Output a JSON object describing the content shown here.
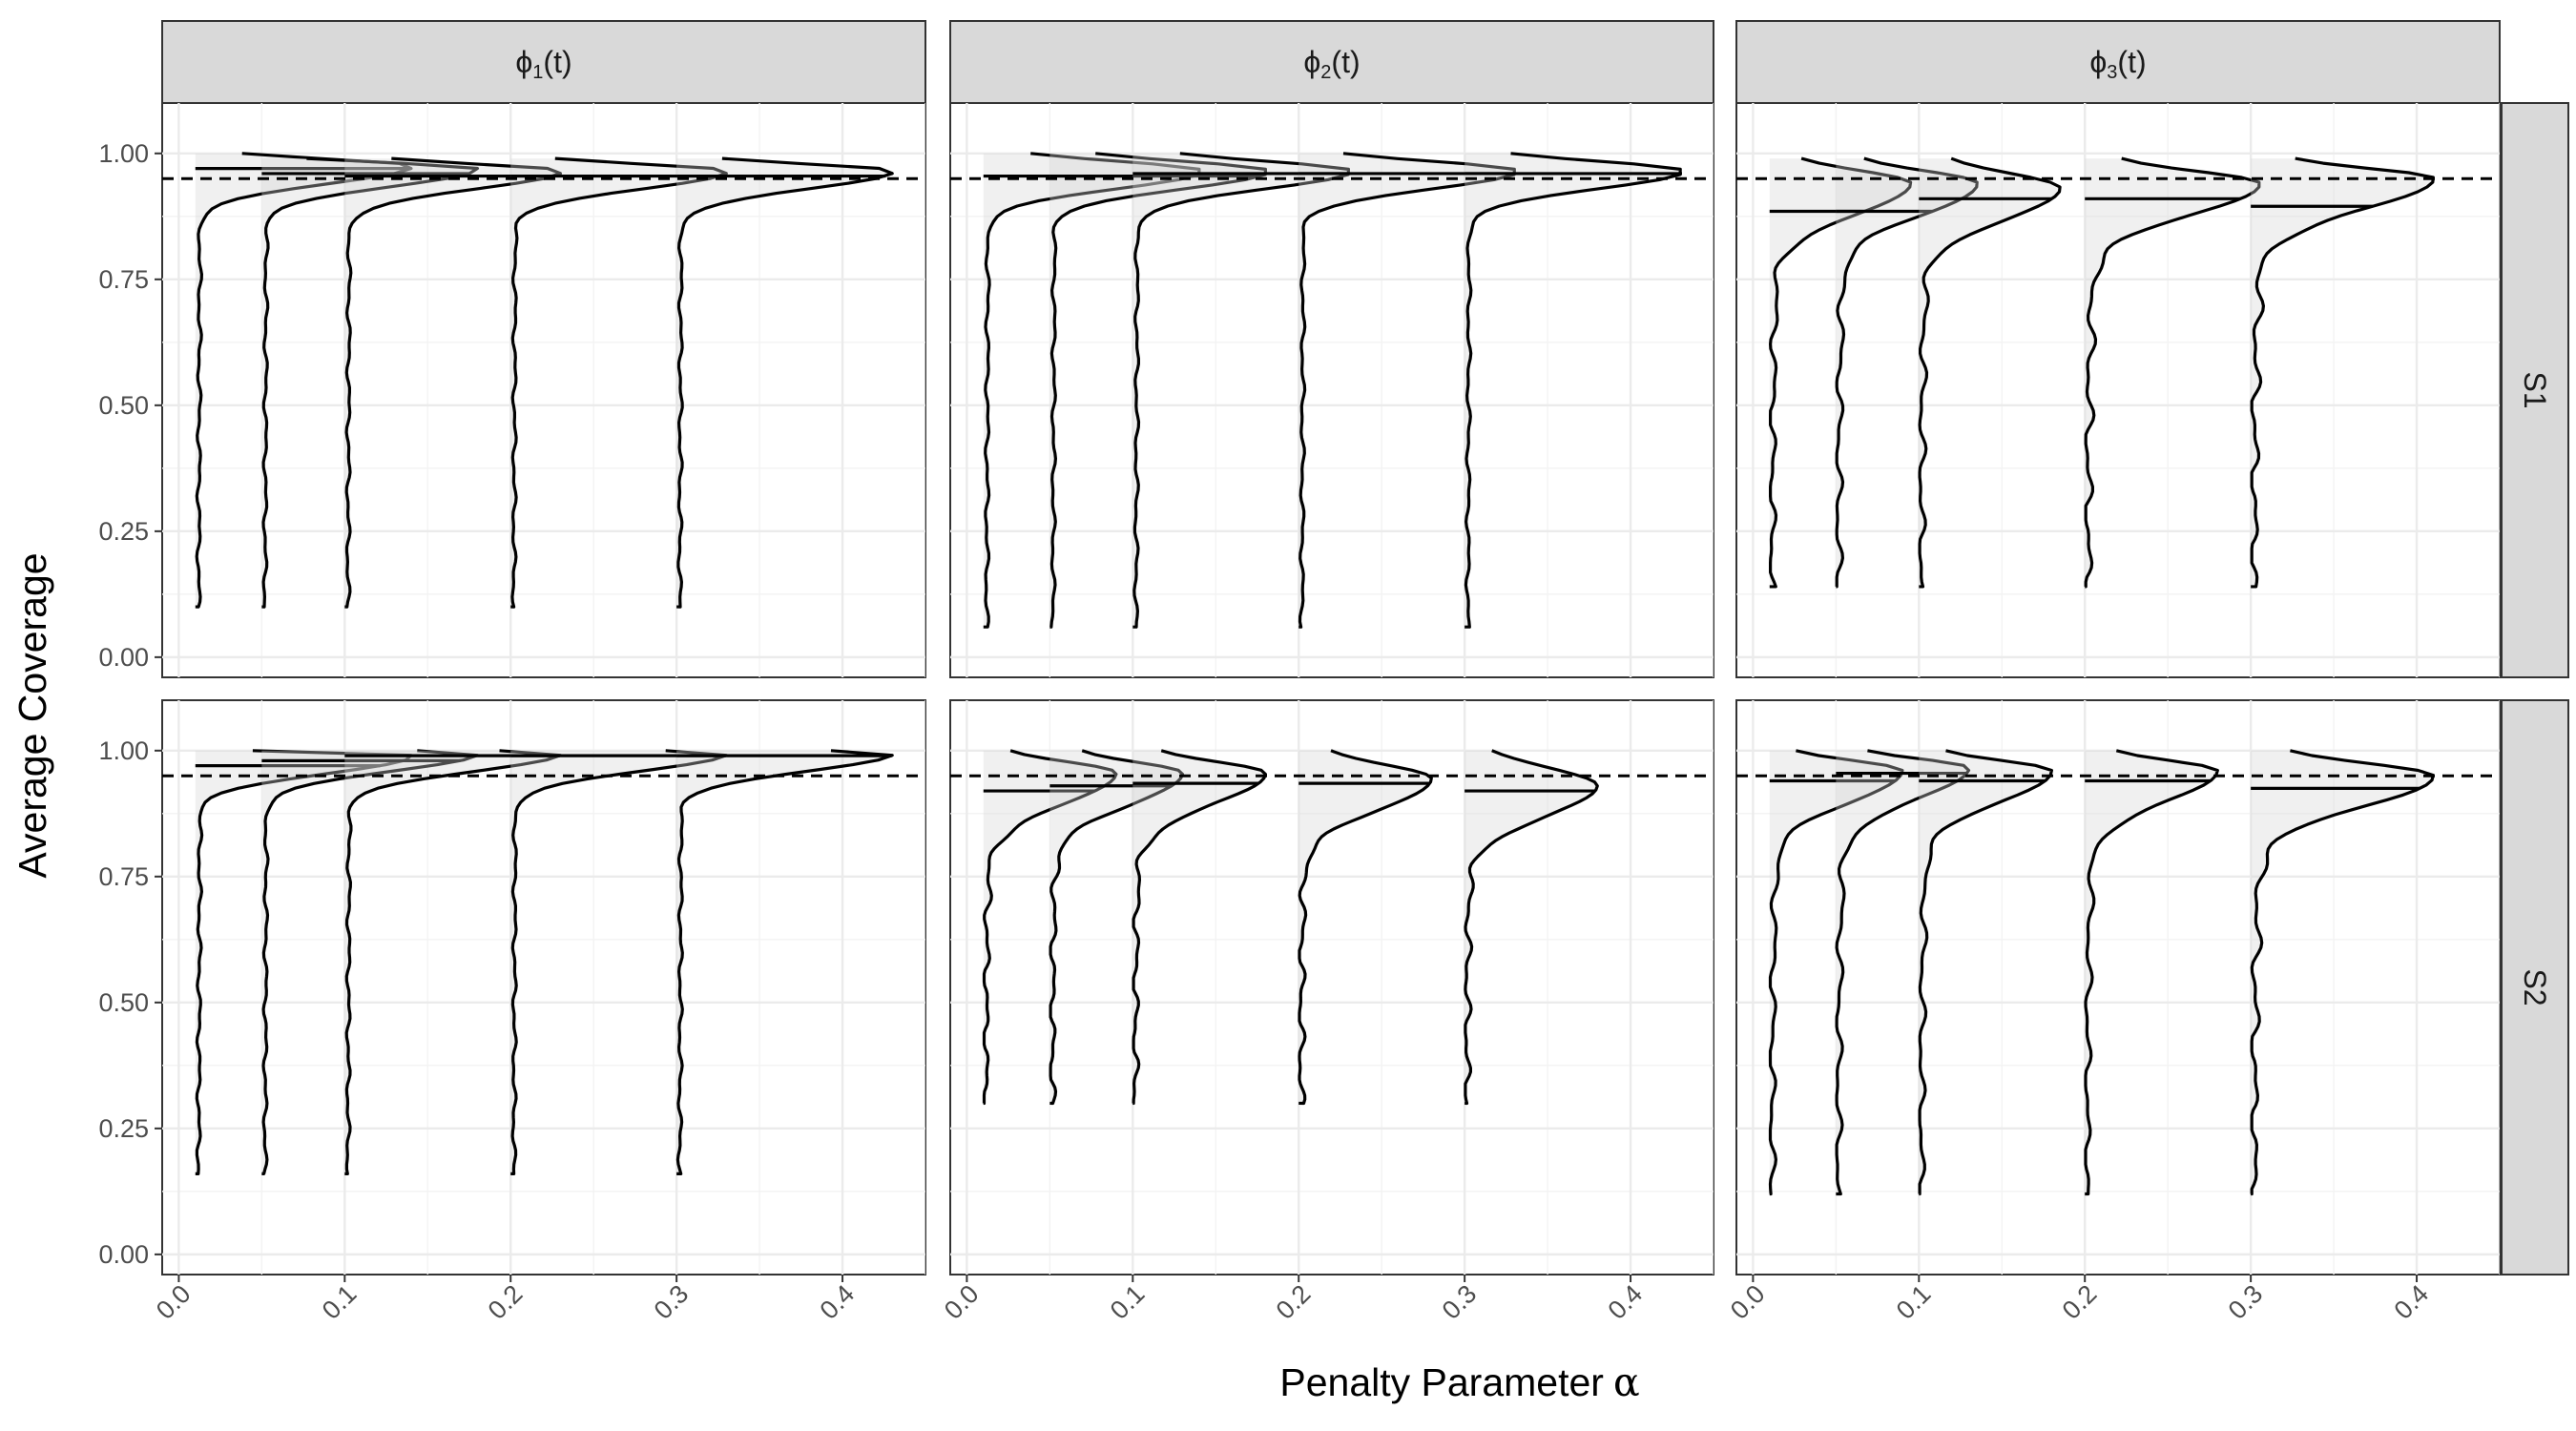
{
  "chart_data": {
    "type": "violin",
    "xlabel": "Penalty Parameter",
    "xlabel_symbol": "α",
    "ylabel": "Average Coverage",
    "xlim": [
      -0.01,
      0.45
    ],
    "ylim": [
      -0.04,
      1.1
    ],
    "x_ticks": [
      0.0,
      0.1,
      0.2,
      0.3,
      0.4
    ],
    "x_tick_labels": [
      "0.0",
      "0.1",
      "0.2",
      "0.3",
      "0.4"
    ],
    "y_ticks": [
      0.0,
      0.25,
      0.5,
      0.75,
      1.0
    ],
    "y_tick_labels": [
      "0.00",
      "0.25",
      "0.50",
      "0.75",
      "1.00"
    ],
    "reference_line": 0.95,
    "alpha_values": [
      0.01,
      0.05,
      0.1,
      0.2,
      0.3
    ],
    "columns": [
      {
        "label_main": "ϕ",
        "label_sub": "1",
        "label_suffix": "(t)"
      },
      {
        "label_main": "ϕ",
        "label_sub": "2",
        "label_suffix": "(t)"
      },
      {
        "label_main": "ϕ",
        "label_sub": "3",
        "label_suffix": "(t)"
      }
    ],
    "rows": [
      {
        "label": "S1"
      },
      {
        "label": "S2"
      }
    ],
    "panels": [
      {
        "row": 0,
        "col": 0,
        "violins": [
          {
            "alpha": 0.01,
            "min": 0.1,
            "max": 1.0,
            "median": 0.97,
            "peak": 0.975,
            "max_width": 0.13,
            "style": "spike"
          },
          {
            "alpha": 0.05,
            "min": 0.1,
            "max": 0.99,
            "median": 0.96,
            "peak": 0.97,
            "max_width": 0.13,
            "style": "spike"
          },
          {
            "alpha": 0.1,
            "min": 0.1,
            "max": 0.99,
            "median": 0.955,
            "peak": 0.965,
            "max_width": 0.13,
            "style": "spike"
          },
          {
            "alpha": 0.2,
            "min": 0.1,
            "max": 0.99,
            "median": 0.955,
            "peak": 0.965,
            "max_width": 0.13,
            "style": "spike"
          },
          {
            "alpha": 0.3,
            "min": 0.1,
            "max": 0.99,
            "median": 0.955,
            "peak": 0.965,
            "max_width": 0.13,
            "style": "spike"
          }
        ]
      },
      {
        "row": 0,
        "col": 1,
        "violins": [
          {
            "alpha": 0.01,
            "min": 0.06,
            "max": 1.0,
            "median": 0.955,
            "peak": 0.965,
            "max_width": 0.13,
            "style": "spike"
          },
          {
            "alpha": 0.05,
            "min": 0.06,
            "max": 1.0,
            "median": 0.955,
            "peak": 0.965,
            "max_width": 0.13,
            "style": "spike"
          },
          {
            "alpha": 0.1,
            "min": 0.06,
            "max": 1.0,
            "median": 0.96,
            "peak": 0.965,
            "max_width": 0.13,
            "style": "spike"
          },
          {
            "alpha": 0.2,
            "min": 0.06,
            "max": 1.0,
            "median": 0.96,
            "peak": 0.965,
            "max_width": 0.13,
            "style": "spike"
          },
          {
            "alpha": 0.3,
            "min": 0.06,
            "max": 1.0,
            "median": 0.96,
            "peak": 0.965,
            "max_width": 0.13,
            "style": "spike"
          }
        ]
      },
      {
        "row": 0,
        "col": 2,
        "violins": [
          {
            "alpha": 0.01,
            "min": 0.14,
            "max": 0.99,
            "median": 0.885,
            "peak": 0.94,
            "max_width": 0.085,
            "style": "broad"
          },
          {
            "alpha": 0.05,
            "min": 0.14,
            "max": 0.99,
            "median": 0.885,
            "peak": 0.94,
            "max_width": 0.085,
            "style": "broad"
          },
          {
            "alpha": 0.1,
            "min": 0.14,
            "max": 0.99,
            "median": 0.91,
            "peak": 0.93,
            "max_width": 0.085,
            "style": "broad"
          },
          {
            "alpha": 0.2,
            "min": 0.14,
            "max": 0.99,
            "median": 0.91,
            "peak": 0.94,
            "max_width": 0.105,
            "style": "broad"
          },
          {
            "alpha": 0.3,
            "min": 0.14,
            "max": 0.99,
            "median": 0.895,
            "peak": 0.95,
            "max_width": 0.11,
            "style": "broad"
          }
        ]
      },
      {
        "row": 1,
        "col": 0,
        "violins": [
          {
            "alpha": 0.01,
            "min": 0.16,
            "max": 1.0,
            "median": 0.97,
            "peak": 0.99,
            "max_width": 0.13,
            "style": "spike"
          },
          {
            "alpha": 0.05,
            "min": 0.16,
            "max": 1.0,
            "median": 0.98,
            "peak": 0.995,
            "max_width": 0.13,
            "style": "spike"
          },
          {
            "alpha": 0.1,
            "min": 0.16,
            "max": 1.0,
            "median": 0.99,
            "peak": 0.995,
            "max_width": 0.13,
            "style": "spike"
          },
          {
            "alpha": 0.2,
            "min": 0.16,
            "max": 1.0,
            "median": 0.99,
            "peak": 0.995,
            "max_width": 0.13,
            "style": "spike"
          },
          {
            "alpha": 0.3,
            "min": 0.16,
            "max": 1.0,
            "median": 0.99,
            "peak": 0.995,
            "max_width": 0.13,
            "style": "spike"
          }
        ]
      },
      {
        "row": 1,
        "col": 1,
        "violins": [
          {
            "alpha": 0.01,
            "min": 0.3,
            "max": 1.0,
            "median": 0.92,
            "peak": 0.955,
            "max_width": 0.08,
            "style": "broad"
          },
          {
            "alpha": 0.05,
            "min": 0.3,
            "max": 1.0,
            "median": 0.93,
            "peak": 0.955,
            "max_width": 0.08,
            "style": "broad"
          },
          {
            "alpha": 0.1,
            "min": 0.3,
            "max": 1.0,
            "median": 0.935,
            "peak": 0.955,
            "max_width": 0.08,
            "style": "broad"
          },
          {
            "alpha": 0.2,
            "min": 0.3,
            "max": 1.0,
            "median": 0.935,
            "peak": 0.945,
            "max_width": 0.08,
            "style": "broad"
          },
          {
            "alpha": 0.3,
            "min": 0.3,
            "max": 1.0,
            "median": 0.92,
            "peak": 0.93,
            "max_width": 0.08,
            "style": "broad"
          }
        ]
      },
      {
        "row": 1,
        "col": 2,
        "violins": [
          {
            "alpha": 0.01,
            "min": 0.12,
            "max": 1.0,
            "median": 0.94,
            "peak": 0.96,
            "max_width": 0.08,
            "style": "broad"
          },
          {
            "alpha": 0.05,
            "min": 0.12,
            "max": 1.0,
            "median": 0.955,
            "peak": 0.965,
            "max_width": 0.08,
            "style": "broad"
          },
          {
            "alpha": 0.1,
            "min": 0.12,
            "max": 1.0,
            "median": 0.94,
            "peak": 0.96,
            "max_width": 0.08,
            "style": "broad"
          },
          {
            "alpha": 0.2,
            "min": 0.12,
            "max": 1.0,
            "median": 0.94,
            "peak": 0.96,
            "max_width": 0.08,
            "style": "broad"
          },
          {
            "alpha": 0.3,
            "min": 0.12,
            "max": 1.0,
            "median": 0.925,
            "peak": 0.95,
            "max_width": 0.11,
            "style": "broad"
          }
        ]
      }
    ]
  }
}
